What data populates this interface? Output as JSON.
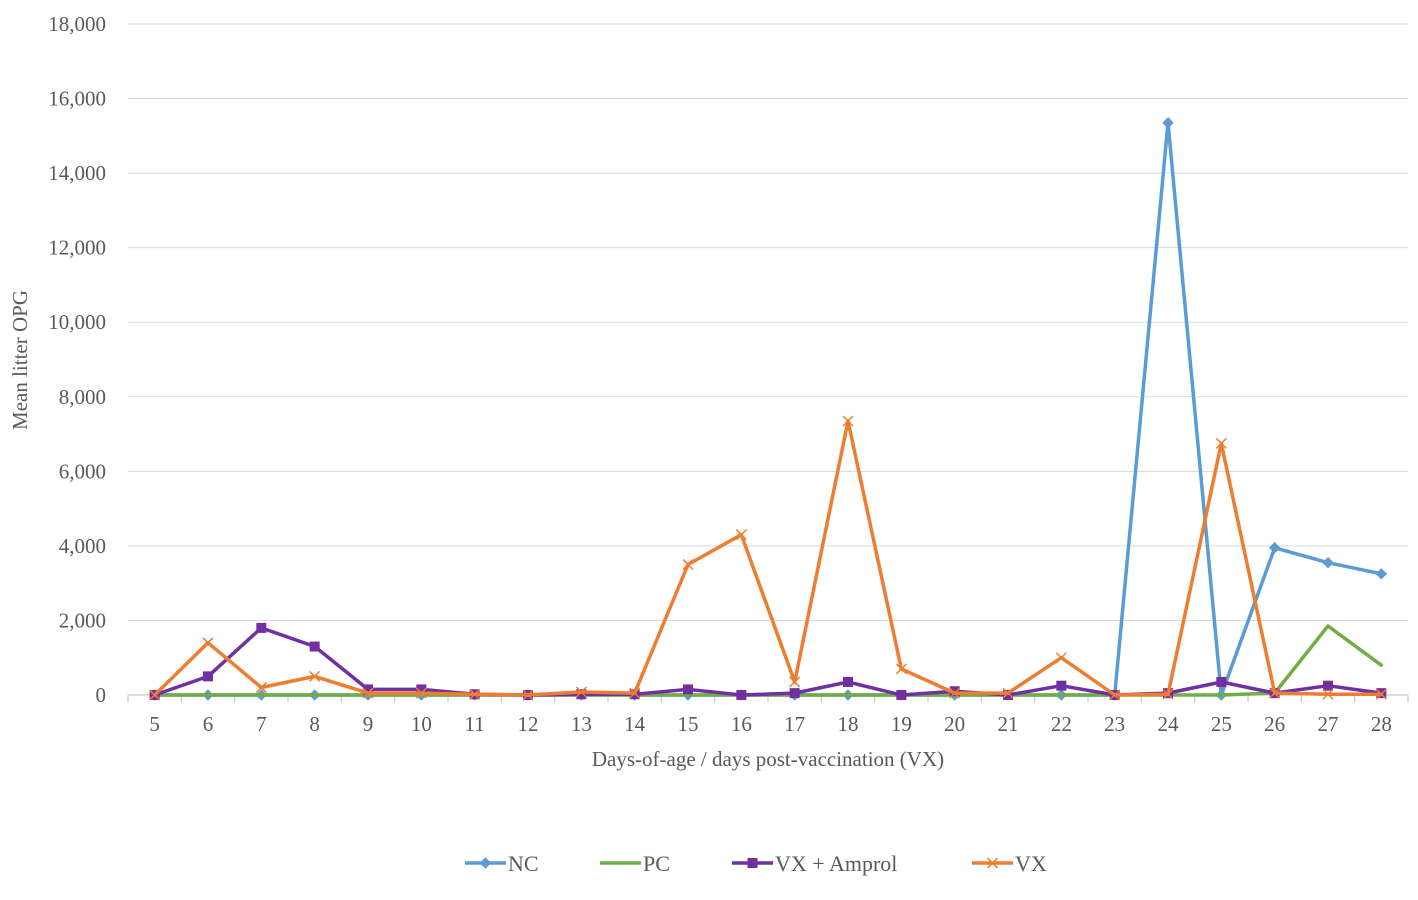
{
  "chart_data": {
    "type": "line",
    "xlabel": "Days-of-age / days post-vaccination (VX)",
    "ylabel": "Mean litter OPG",
    "categories": [
      "5",
      "6",
      "7",
      "8",
      "9",
      "10",
      "11",
      "12",
      "13",
      "14",
      "15",
      "16",
      "17",
      "18",
      "19",
      "20",
      "21",
      "22",
      "23",
      "24",
      "25",
      "26",
      "27",
      "28"
    ],
    "ylim": [
      0,
      18000
    ],
    "yticks": [
      0,
      2000,
      4000,
      6000,
      8000,
      10000,
      12000,
      14000,
      16000,
      18000
    ],
    "ytick_labels": [
      "0",
      "2,000",
      "4,000",
      "6,000",
      "8,000",
      "10,000",
      "12,000",
      "14,000",
      "16,000",
      "18,000"
    ],
    "grid": "horizontal",
    "legend_position": "bottom",
    "series": [
      {
        "name": "NC",
        "color": "#5b9bd5",
        "marker": "diamond",
        "values": [
          0,
          0,
          0,
          0,
          0,
          0,
          0,
          0,
          0,
          0,
          0,
          0,
          0,
          0,
          0,
          0,
          0,
          0,
          0,
          15350,
          0,
          3950,
          3550,
          3250
        ]
      },
      {
        "name": "PC",
        "color": "#70ad47",
        "marker": "none",
        "values": [
          0,
          0,
          0,
          0,
          0,
          0,
          0,
          0,
          0,
          0,
          0,
          0,
          0,
          0,
          0,
          0,
          0,
          0,
          0,
          0,
          0,
          50,
          1850,
          800
        ]
      },
      {
        "name": "VX + Amprol",
        "color": "#7030a0",
        "marker": "square",
        "values": [
          0,
          500,
          1800,
          1300,
          150,
          150,
          20,
          0,
          20,
          20,
          150,
          0,
          50,
          350,
          0,
          100,
          0,
          250,
          0,
          50,
          350,
          50,
          250,
          50
        ]
      },
      {
        "name": "VX",
        "color": "#ed7d31",
        "marker": "x",
        "values": [
          0,
          1400,
          200,
          500,
          50,
          50,
          20,
          0,
          80,
          50,
          3500,
          4300,
          350,
          7350,
          700,
          50,
          50,
          1000,
          0,
          20,
          6750,
          50,
          20,
          20
        ]
      }
    ]
  }
}
